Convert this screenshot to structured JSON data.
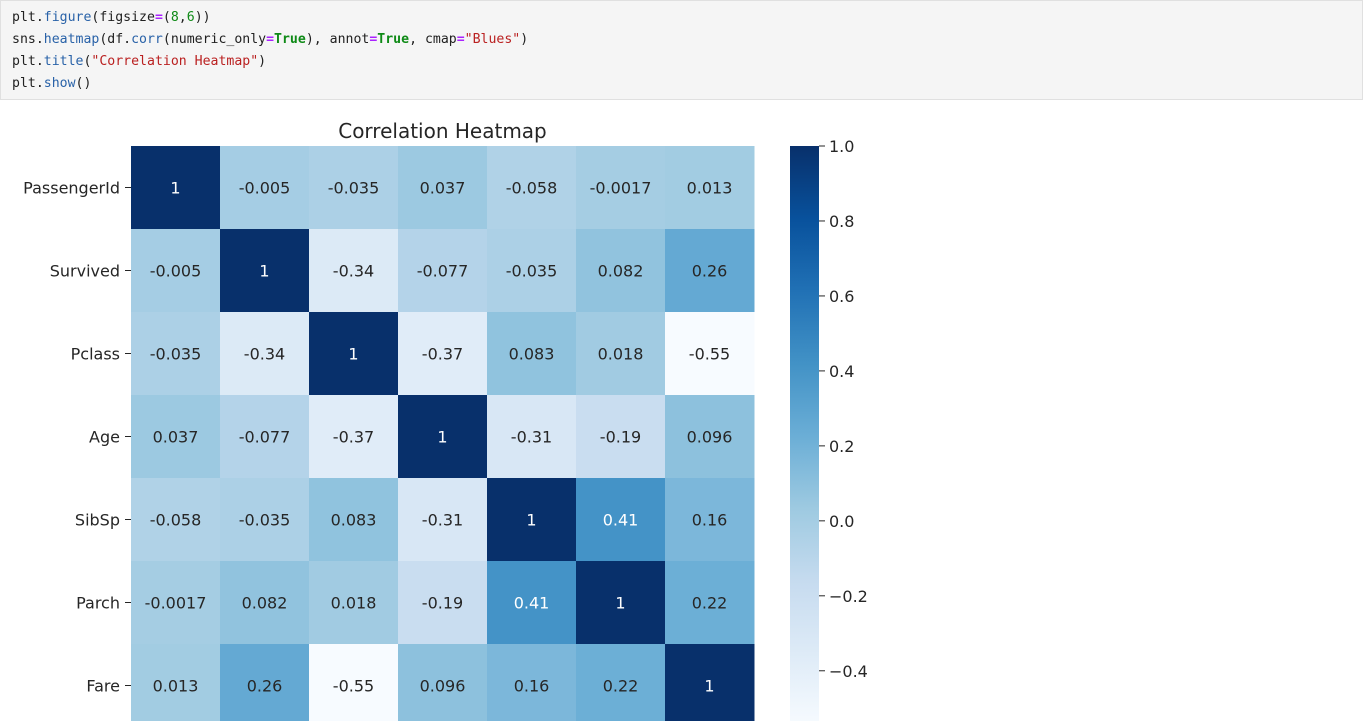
{
  "code_cell": {
    "lines": [
      [
        {
          "t": "plt.",
          "c": ""
        },
        {
          "t": "figure",
          "c": "fn"
        },
        {
          "t": "(figsize",
          "c": ""
        },
        {
          "t": "=",
          "c": "op"
        },
        {
          "t": "(",
          "c": ""
        },
        {
          "t": "8",
          "c": "num"
        },
        {
          "t": ",",
          "c": ""
        },
        {
          "t": "6",
          "c": "num"
        },
        {
          "t": "))",
          "c": ""
        }
      ],
      [
        {
          "t": "sns.",
          "c": ""
        },
        {
          "t": "heatmap",
          "c": "fn"
        },
        {
          "t": "(df.",
          "c": ""
        },
        {
          "t": "corr",
          "c": "fn"
        },
        {
          "t": "(numeric_only",
          "c": ""
        },
        {
          "t": "=",
          "c": "op"
        },
        {
          "t": "True",
          "c": "kw"
        },
        {
          "t": "), annot",
          "c": ""
        },
        {
          "t": "=",
          "c": "op"
        },
        {
          "t": "True",
          "c": "kw"
        },
        {
          "t": ", cmap",
          "c": ""
        },
        {
          "t": "=",
          "c": "op"
        },
        {
          "t": "\"Blues\"",
          "c": "str"
        },
        {
          "t": ")",
          "c": ""
        }
      ],
      [
        {
          "t": "plt.",
          "c": ""
        },
        {
          "t": "title",
          "c": "fn"
        },
        {
          "t": "(",
          "c": ""
        },
        {
          "t": "\"Correlation Heatmap\"",
          "c": "str"
        },
        {
          "t": ")",
          "c": ""
        }
      ],
      [
        {
          "t": "plt.",
          "c": ""
        },
        {
          "t": "show",
          "c": "fn"
        },
        {
          "t": "()",
          "c": ""
        }
      ]
    ]
  },
  "chart_data": {
    "type": "heatmap",
    "title": "Correlation Heatmap",
    "colormap": "Blues",
    "categories": [
      "PassengerId",
      "Survived",
      "Pclass",
      "Age",
      "SibSp",
      "Parch",
      "Fare"
    ],
    "labels": [
      [
        "1",
        "-0.005",
        "-0.035",
        "0.037",
        "-0.058",
        "-0.0017",
        "0.013"
      ],
      [
        "-0.005",
        "1",
        "-0.34",
        "-0.077",
        "-0.035",
        "0.082",
        "0.26"
      ],
      [
        "-0.035",
        "-0.34",
        "1",
        "-0.37",
        "0.083",
        "0.018",
        "-0.55"
      ],
      [
        "0.037",
        "-0.077",
        "-0.37",
        "1",
        "-0.31",
        "-0.19",
        "0.096"
      ],
      [
        "-0.058",
        "-0.035",
        "0.083",
        "-0.31",
        "1",
        "0.41",
        "0.16"
      ],
      [
        "-0.0017",
        "0.082",
        "0.018",
        "-0.19",
        "0.41",
        "1",
        "0.22"
      ],
      [
        "0.013",
        "0.26",
        "-0.55",
        "0.096",
        "0.16",
        "0.22",
        "1"
      ]
    ],
    "values": [
      [
        1,
        -0.005,
        -0.035,
        0.037,
        -0.058,
        -0.0017,
        0.013
      ],
      [
        -0.005,
        1,
        -0.34,
        -0.077,
        -0.035,
        0.082,
        0.26
      ],
      [
        -0.035,
        -0.34,
        1,
        -0.37,
        0.083,
        0.018,
        -0.55
      ],
      [
        0.037,
        -0.077,
        -0.37,
        1,
        -0.31,
        -0.19,
        0.096
      ],
      [
        -0.058,
        -0.035,
        0.083,
        -0.31,
        1,
        0.41,
        0.16
      ],
      [
        -0.0017,
        0.082,
        0.018,
        -0.19,
        0.41,
        1,
        0.22
      ],
      [
        0.013,
        0.26,
        -0.55,
        0.096,
        0.16,
        0.22,
        1
      ]
    ],
    "vmin": -0.55,
    "vmax": 1,
    "colorbar": {
      "ticks": [
        1.0,
        0.8,
        0.6,
        0.4,
        0.2,
        0.0,
        -0.2,
        -0.4
      ],
      "tick_labels": [
        "1.0",
        "0.8",
        "0.6",
        "0.4",
        "0.2",
        "0.0",
        "−0.2",
        "−0.4"
      ]
    }
  }
}
